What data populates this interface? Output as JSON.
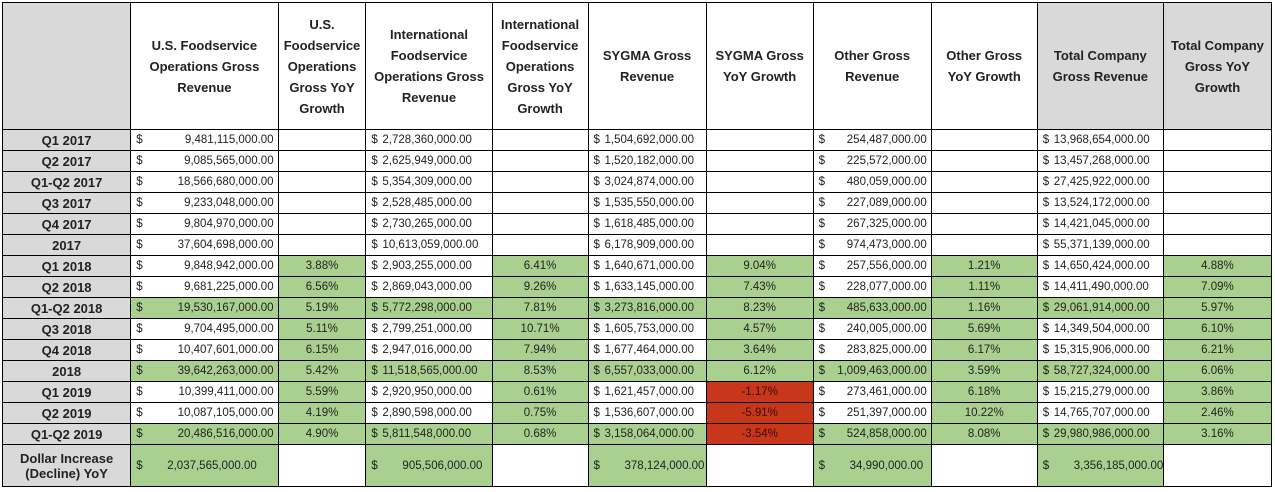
{
  "headers": [
    "",
    "U.S. Foodservice Operations Gross Revenue",
    "U.S. Foodservice Operations Gross YoY Growth",
    "International Foodservice Operations Gross Revenue",
    "International Foodservice Operations Gross YoY Growth",
    "SYGMA Gross Revenue",
    "SYGMA Gross YoY Growth",
    "Other Gross Revenue",
    "Other Gross YoY Growth",
    "Total Company Gross Revenue",
    "Total Company Gross YoY Growth"
  ],
  "currency_symbol": "$",
  "colors": {
    "header_gray": "#d9d9d9",
    "growth_positive": "#a9d08e",
    "growth_negative": "#c9371b"
  },
  "rows": [
    {
      "label": "Q1 2017",
      "us": "9,481,115,000.00",
      "us_g": "",
      "intl": "2,728,360,000.00",
      "intl_g": "",
      "sygma": "1,504,692,000.00",
      "sygma_g": "",
      "other": "254,487,000.00",
      "other_g": "",
      "total": "13,968,654,000.00",
      "total_g": ""
    },
    {
      "label": "Q2 2017",
      "us": "9,085,565,000.00",
      "us_g": "",
      "intl": "2,625,949,000.00",
      "intl_g": "",
      "sygma": "1,520,182,000.00",
      "sygma_g": "",
      "other": "225,572,000.00",
      "other_g": "",
      "total": "13,457,268,000.00",
      "total_g": ""
    },
    {
      "label": "Q1-Q2 2017",
      "us": "18,566,680,000.00",
      "us_g": "",
      "intl": "5,354,309,000.00",
      "intl_g": "",
      "sygma": "3,024,874,000.00",
      "sygma_g": "",
      "other": "480,059,000.00",
      "other_g": "",
      "total": "27,425,922,000.00",
      "total_g": ""
    },
    {
      "label": "Q3 2017",
      "us": "9,233,048,000.00",
      "us_g": "",
      "intl": "2,528,485,000.00",
      "intl_g": "",
      "sygma": "1,535,550,000.00",
      "sygma_g": "",
      "other": "227,089,000.00",
      "other_g": "",
      "total": "13,524,172,000.00",
      "total_g": ""
    },
    {
      "label": "Q4 2017",
      "us": "9,804,970,000.00",
      "us_g": "",
      "intl": "2,730,265,000.00",
      "intl_g": "",
      "sygma": "1,618,485,000.00",
      "sygma_g": "",
      "other": "267,325,000.00",
      "other_g": "",
      "total": "14,421,045,000.00",
      "total_g": ""
    },
    {
      "label": "2017",
      "us": "37,604,698,000.00",
      "us_g": "",
      "intl": "10,613,059,000.00",
      "intl_g": "",
      "sygma": "6,178,909,000.00",
      "sygma_g": "",
      "other": "974,473,000.00",
      "other_g": "",
      "total": "55,371,139,000.00",
      "total_g": ""
    },
    {
      "label": "Q1 2018",
      "us": "9,848,942,000.00",
      "us_g": "3.88%",
      "intl": "2,903,255,000.00",
      "intl_g": "6.41%",
      "sygma": "1,640,671,000.00",
      "sygma_g": "9.04%",
      "other": "257,556,000.00",
      "other_g": "1.21%",
      "total": "14,650,424,000.00",
      "total_g": "4.88%"
    },
    {
      "label": "Q2 2018",
      "us": "9,681,225,000.00",
      "us_g": "6.56%",
      "intl": "2,869,043,000.00",
      "intl_g": "9.26%",
      "sygma": "1,633,145,000.00",
      "sygma_g": "7.43%",
      "other": "228,077,000.00",
      "other_g": "1.11%",
      "total": "14,411,490,000.00",
      "total_g": "7.09%"
    },
    {
      "label": "Q1-Q2 2018",
      "us": "19,530,167,000.00",
      "us_g": "5.19%",
      "intl": "5,772,298,000.00",
      "intl_g": "7.81%",
      "sygma": "3,273,816,000.00",
      "sygma_g": "8.23%",
      "other": "485,633,000.00",
      "other_g": "1.16%",
      "total": "29,061,914,000.00",
      "total_g": "5.97%"
    },
    {
      "label": "Q3 2018",
      "us": "9,704,495,000.00",
      "us_g": "5.11%",
      "intl": "2,799,251,000.00",
      "intl_g": "10.71%",
      "sygma": "1,605,753,000.00",
      "sygma_g": "4.57%",
      "other": "240,005,000.00",
      "other_g": "5.69%",
      "total": "14,349,504,000.00",
      "total_g": "6.10%"
    },
    {
      "label": "Q4 2018",
      "us": "10,407,601,000.00",
      "us_g": "6.15%",
      "intl": "2,947,016,000.00",
      "intl_g": "7.94%",
      "sygma": "1,677,464,000.00",
      "sygma_g": "3.64%",
      "other": "283,825,000.00",
      "other_g": "6.17%",
      "total": "15,315,906,000.00",
      "total_g": "6.21%"
    },
    {
      "label": "2018",
      "us": "39,642,263,000.00",
      "us_g": "5.42%",
      "intl": "11,518,565,000.00",
      "intl_g": "8.53%",
      "sygma": "6,557,033,000.00",
      "sygma_g": "6.12%",
      "other": "1,009,463,000.00",
      "other_g": "3.59%",
      "total": "58,727,324,000.00",
      "total_g": "6.06%"
    },
    {
      "label": "Q1 2019",
      "us": "10,399,411,000.00",
      "us_g": "5.59%",
      "intl": "2,920,950,000.00",
      "intl_g": "0.61%",
      "sygma": "1,621,457,000.00",
      "sygma_g": "-1.17%",
      "other": "273,461,000.00",
      "other_g": "6.18%",
      "total": "15,215,279,000.00",
      "total_g": "3.86%"
    },
    {
      "label": "Q2 2019",
      "us": "10,087,105,000.00",
      "us_g": "4.19%",
      "intl": "2,890,598,000.00",
      "intl_g": "0.75%",
      "sygma": "1,536,607,000.00",
      "sygma_g": "-5.91%",
      "other": "251,397,000.00",
      "other_g": "10.22%",
      "total": "14,765,707,000.00",
      "total_g": "2.46%"
    },
    {
      "label": "Q1-Q2 2019",
      "us": "20,486,516,000.00",
      "us_g": "4.90%",
      "intl": "5,811,548,000.00",
      "intl_g": "0.68%",
      "sygma": "3,158,064,000.00",
      "sygma_g": "-3.54%",
      "other": "524,858,000.00",
      "other_g": "8.08%",
      "total": "29,980,986,000.00",
      "total_g": "3.16%"
    },
    {
      "label": "Dollar Increase (Decline) YoY",
      "us": "2,037,565,000.00",
      "us_g": "",
      "intl": "905,506,000.00",
      "intl_g": "",
      "sygma": "378,124,000.00",
      "sygma_g": "",
      "other": "34,990,000.00",
      "other_g": "",
      "total": "3,356,185,000.00",
      "total_g": ""
    }
  ]
}
